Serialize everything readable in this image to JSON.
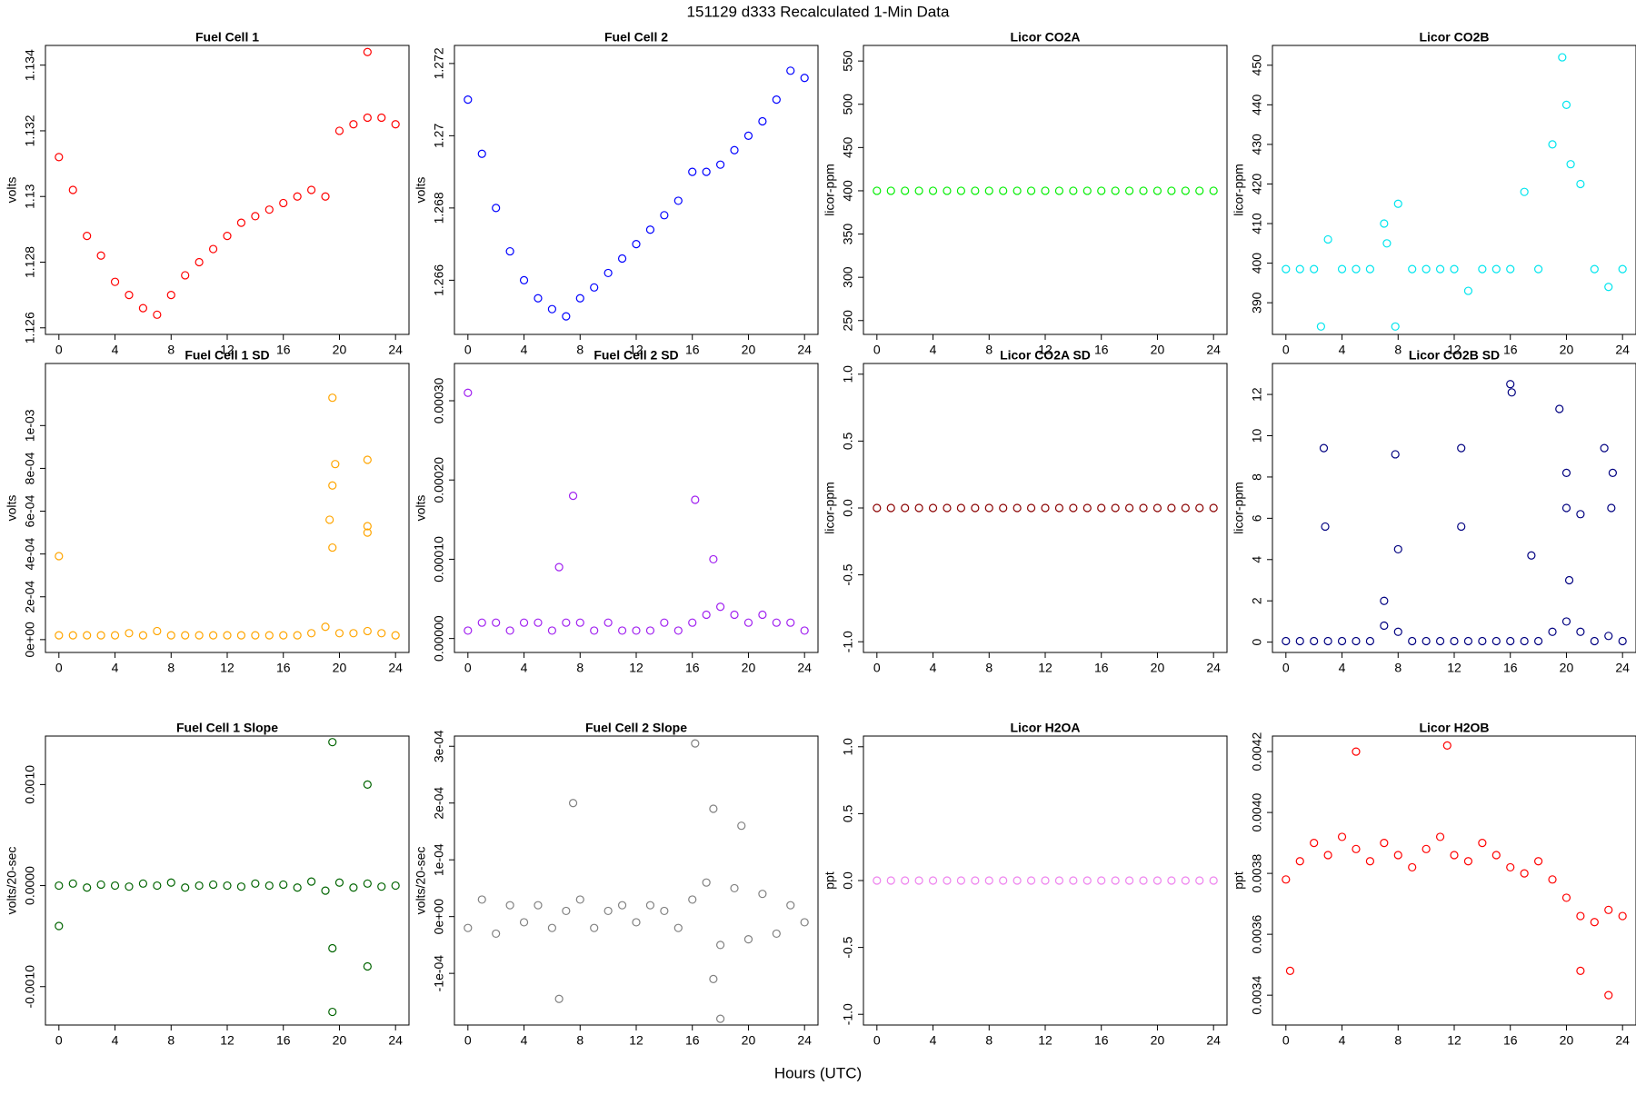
{
  "title": "151129   d333   Recalculated 1-Min Data",
  "xlabel": "Hours (UTC)",
  "chart_data": [
    {
      "type": "scatter",
      "title": "Fuel Cell 1",
      "ylabel": "volts",
      "color": "#ff0000",
      "x": [
        0,
        1,
        2,
        3,
        4,
        5,
        6,
        7,
        8,
        9,
        10,
        11,
        12,
        13,
        14,
        15,
        16,
        17,
        18,
        19,
        20,
        21,
        22,
        23,
        24,
        22
      ],
      "values": [
        1.1312,
        1.1302,
        1.1288,
        1.1282,
        1.1274,
        1.127,
        1.1266,
        1.1264,
        1.127,
        1.1276,
        1.128,
        1.1284,
        1.1288,
        1.1292,
        1.1294,
        1.1296,
        1.1298,
        1.13,
        1.1302,
        1.13,
        1.132,
        1.1322,
        1.1324,
        1.1324,
        1.1322,
        1.1344
      ],
      "xlim": [
        -0.96,
        24.96
      ],
      "xticks": [
        0,
        4,
        8,
        12,
        16,
        20,
        24
      ],
      "ylim": [
        1.1258,
        1.1346
      ],
      "yticks": [
        1.126,
        1.128,
        1.13,
        1.132,
        1.134
      ]
    },
    {
      "type": "scatter",
      "title": "Fuel Cell 2",
      "ylabel": "volts",
      "color": "#0000ff",
      "x": [
        0,
        1,
        2,
        3,
        4,
        5,
        6,
        7,
        8,
        9,
        10,
        11,
        12,
        13,
        14,
        15,
        16,
        17,
        18,
        19,
        20,
        21,
        22,
        23,
        24
      ],
      "values": [
        1.271,
        1.2695,
        1.268,
        1.2668,
        1.266,
        1.2655,
        1.2652,
        1.265,
        1.2655,
        1.2658,
        1.2662,
        1.2666,
        1.267,
        1.2674,
        1.2678,
        1.2682,
        1.269,
        1.269,
        1.2692,
        1.2696,
        1.27,
        1.2704,
        1.271,
        1.2718,
        1.2716
      ],
      "xlim": [
        -0.96,
        24.96
      ],
      "xticks": [
        0,
        4,
        8,
        12,
        16,
        20,
        24
      ],
      "ylim": [
        1.2645,
        1.2725
      ],
      "yticks": [
        1.266,
        1.268,
        1.27,
        1.272
      ]
    },
    {
      "type": "scatter",
      "title": "Licor CO2A",
      "ylabel": "licor-ppm",
      "color": "#00ee00",
      "x": [
        0,
        1,
        2,
        3,
        4,
        5,
        6,
        7,
        8,
        9,
        10,
        11,
        12,
        13,
        14,
        15,
        16,
        17,
        18,
        19,
        20,
        21,
        22,
        23,
        24
      ],
      "values": [
        400,
        400,
        400,
        400,
        400,
        400,
        400,
        400,
        400,
        400,
        400,
        400,
        400,
        400,
        400,
        400,
        400,
        400,
        400,
        400,
        400,
        400,
        400,
        400,
        400
      ],
      "xlim": [
        -0.96,
        24.96
      ],
      "xticks": [
        0,
        4,
        8,
        12,
        16,
        20,
        24
      ],
      "ylim": [
        234,
        568
      ],
      "yticks": [
        250,
        300,
        350,
        400,
        450,
        500,
        550
      ]
    },
    {
      "type": "scatter",
      "title": "Licor CO2B",
      "ylabel": "licor-ppm",
      "color": "#00e5ee",
      "x": [
        0,
        1,
        2,
        3,
        4,
        5,
        6,
        7,
        8,
        9,
        10,
        11,
        12,
        13,
        14,
        15,
        16,
        17,
        18,
        19,
        20,
        21,
        22,
        23,
        24,
        2.5,
        7.8,
        19.7,
        7.2,
        20.3
      ],
      "values": [
        398.5,
        398.5,
        398.5,
        406,
        398.5,
        398.5,
        398.5,
        410,
        415,
        398.5,
        398.5,
        398.5,
        398.5,
        393,
        398.5,
        398.5,
        398.5,
        418,
        398.5,
        430,
        440,
        420,
        398.5,
        394,
        398.5,
        384,
        384,
        452,
        405,
        425
      ],
      "xlim": [
        -0.96,
        24.96
      ],
      "xticks": [
        0,
        4,
        8,
        12,
        16,
        20,
        24
      ],
      "ylim": [
        382,
        455
      ],
      "yticks": [
        390,
        400,
        410,
        420,
        430,
        440,
        450
      ]
    },
    {
      "type": "scatter",
      "title": "Fuel Cell 1 SD",
      "ylabel": "volts",
      "color": "#ffa500",
      "x": [
        0,
        1,
        2,
        3,
        4,
        5,
        6,
        7,
        8,
        9,
        10,
        11,
        12,
        13,
        14,
        15,
        16,
        17,
        18,
        19,
        20,
        21,
        22,
        23,
        24,
        0,
        19.5,
        19.7,
        19.5,
        19.3,
        19.5,
        22,
        22,
        22
      ],
      "values": [
        2e-05,
        2e-05,
        2e-05,
        2e-05,
        2e-05,
        3e-05,
        2e-05,
        4e-05,
        2e-05,
        2e-05,
        2e-05,
        2e-05,
        2e-05,
        2e-05,
        2e-05,
        2e-05,
        2e-05,
        2e-05,
        3e-05,
        6e-05,
        3e-05,
        3e-05,
        4e-05,
        3e-05,
        2e-05,
        0.00039,
        0.00113,
        0.00082,
        0.00072,
        0.00056,
        0.00043,
        0.00084,
        0.00053,
        0.0005
      ],
      "xlim": [
        -0.96,
        24.96
      ],
      "xticks": [
        0,
        4,
        8,
        12,
        16,
        20,
        24
      ],
      "ylim": [
        -6e-05,
        0.00129
      ],
      "yticks": [
        {
          "value": 0,
          "label": "0e+00"
        },
        {
          "value": 0.0002,
          "label": "2e-04"
        },
        {
          "value": 0.0004,
          "label": "4e-04"
        },
        {
          "value": 0.0006,
          "label": "6e-04"
        },
        {
          "value": 0.0008,
          "label": "8e-04"
        },
        {
          "value": 0.001,
          "label": "1e-03"
        }
      ]
    },
    {
      "type": "scatter",
      "title": "Fuel Cell 2 SD",
      "ylabel": "volts",
      "color": "#a020f0",
      "x": [
        0,
        1,
        2,
        3,
        4,
        5,
        6,
        7,
        8,
        9,
        10,
        11,
        12,
        13,
        14,
        15,
        16,
        17,
        18,
        19,
        20,
        21,
        22,
        23,
        24,
        0,
        7.5,
        16.2,
        6.5,
        17.5
      ],
      "values": [
        1e-05,
        2e-05,
        2e-05,
        1e-05,
        2e-05,
        2e-05,
        1e-05,
        2e-05,
        2e-05,
        1e-05,
        2e-05,
        1e-05,
        1e-05,
        1e-05,
        2e-05,
        1e-05,
        2e-05,
        3e-05,
        4e-05,
        3e-05,
        2e-05,
        3e-05,
        2e-05,
        2e-05,
        1e-05,
        0.00031,
        0.00018,
        0.000175,
        9e-05,
        0.0001
      ],
      "xlim": [
        -0.96,
        24.96
      ],
      "xticks": [
        0,
        4,
        8,
        12,
        16,
        20,
        24
      ],
      "ylim": [
        -1.76e-05,
        0.000347
      ],
      "yticks": [
        {
          "value": 0,
          "label": "0.00000"
        },
        {
          "value": 0.0001,
          "label": "0.00010"
        },
        {
          "value": 0.0002,
          "label": "0.00020"
        },
        {
          "value": 0.0003,
          "label": "0.00030"
        }
      ]
    },
    {
      "type": "scatter",
      "title": "Licor CO2A SD",
      "ylabel": "licor-ppm",
      "color": "#8b0000",
      "x": [
        0,
        1,
        2,
        3,
        4,
        5,
        6,
        7,
        8,
        9,
        10,
        11,
        12,
        13,
        14,
        15,
        16,
        17,
        18,
        19,
        20,
        21,
        22,
        23,
        24
      ],
      "values": [
        0,
        0,
        0,
        0,
        0,
        0,
        0,
        0,
        0,
        0,
        0,
        0,
        0,
        0,
        0,
        0,
        0,
        0,
        0,
        0,
        0,
        0,
        0,
        0,
        0
      ],
      "xlim": [
        -0.96,
        24.96
      ],
      "xticks": [
        0,
        4,
        8,
        12,
        16,
        20,
        24
      ],
      "ylim": [
        -1.08,
        1.08
      ],
      "yticks": [
        {
          "value": -1,
          "label": "-1.0"
        },
        -0.5,
        {
          "value": 0,
          "label": "0.0"
        },
        0.5,
        {
          "value": 1,
          "label": "1.0"
        }
      ]
    },
    {
      "type": "scatter",
      "title": "Licor CO2B SD",
      "ylabel": "licor-ppm",
      "color": "#000080",
      "x": [
        0,
        1,
        2,
        3,
        4,
        5,
        6,
        7,
        8,
        9,
        10,
        11,
        12,
        13,
        14,
        15,
        16,
        17,
        18,
        19,
        20,
        21,
        22,
        23,
        24,
        2.7,
        2.8,
        7.8,
        8,
        7,
        12.5,
        12.5,
        16,
        16.1,
        19.5,
        20,
        20,
        21,
        22.7,
        23.3,
        23.2,
        17.5,
        20.2
      ],
      "values": [
        0.05,
        0.05,
        0.05,
        0.05,
        0.05,
        0.05,
        0.05,
        0.8,
        0.5,
        0.05,
        0.05,
        0.05,
        0.05,
        0.05,
        0.05,
        0.05,
        0.05,
        0.05,
        0.05,
        0.5,
        1,
        0.5,
        0.05,
        0.3,
        0.05,
        9.4,
        5.6,
        9.1,
        4.5,
        2,
        9.4,
        5.6,
        12.5,
        12.1,
        11.3,
        8.2,
        6.5,
        6.2,
        9.4,
        8.2,
        6.5,
        4.2,
        3
      ],
      "xlim": [
        -0.96,
        24.96
      ],
      "xticks": [
        0,
        4,
        8,
        12,
        16,
        20,
        24
      ],
      "ylim": [
        -0.5,
        13.5
      ],
      "yticks": [
        0,
        2,
        4,
        6,
        8,
        10,
        12
      ]
    },
    {
      "type": "scatter",
      "title": "Fuel Cell 1 Slope",
      "ylabel": "volts/20-sec",
      "color": "#006400",
      "x": [
        0,
        1,
        2,
        3,
        4,
        5,
        6,
        7,
        8,
        9,
        10,
        11,
        12,
        13,
        14,
        15,
        16,
        17,
        18,
        19,
        20,
        21,
        22,
        23,
        24,
        19.5,
        22,
        0,
        19.5,
        19.5,
        22
      ],
      "values": [
        0,
        2e-05,
        -2e-05,
        1e-05,
        0,
        -1e-05,
        2e-05,
        0,
        3e-05,
        -2e-05,
        0,
        1e-05,
        0,
        -1e-05,
        2e-05,
        0,
        1e-05,
        -2e-05,
        4e-05,
        -5e-05,
        3e-05,
        -2e-05,
        2e-05,
        -1e-05,
        0,
        0.00142,
        0.001,
        -0.0004,
        -0.00062,
        -0.00125,
        -0.0008
      ],
      "xlim": [
        -0.96,
        24.96
      ],
      "xticks": [
        0,
        4,
        8,
        12,
        16,
        20,
        24
      ],
      "ylim": [
        -0.00138,
        0.00148
      ],
      "yticks": [
        {
          "value": -0.001,
          "label": "-0.0010"
        },
        {
          "value": 0,
          "label": "0.0000"
        },
        {
          "value": 0.001,
          "label": "0.0010"
        }
      ]
    },
    {
      "type": "scatter",
      "title": "Fuel Cell 2 Slope",
      "ylabel": "volts/20-sec",
      "color": "#808080",
      "x": [
        0,
        1,
        2,
        3,
        4,
        5,
        6,
        7,
        8,
        9,
        10,
        11,
        12,
        13,
        14,
        15,
        16,
        17,
        18,
        19,
        20,
        21,
        22,
        23,
        24,
        16.2,
        7.5,
        17.5,
        19.5,
        6.5,
        18,
        17.5
      ],
      "values": [
        -2e-05,
        3e-05,
        -3e-05,
        2e-05,
        -1e-05,
        2e-05,
        -2e-05,
        1e-05,
        3e-05,
        -2e-05,
        1e-05,
        2e-05,
        -1e-05,
        2e-05,
        1e-05,
        -2e-05,
        3e-05,
        6e-05,
        -5e-05,
        5e-05,
        -4e-05,
        4e-05,
        -3e-05,
        2e-05,
        -1e-05,
        0.000305,
        0.0002,
        0.00019,
        0.00016,
        -0.000145,
        -0.00018,
        -0.00011
      ],
      "xlim": [
        -0.96,
        24.96
      ],
      "xticks": [
        0,
        4,
        8,
        12,
        16,
        20,
        24
      ],
      "ylim": [
        -0.000191,
        0.000318
      ],
      "yticks": [
        {
          "value": -0.0001,
          "label": "-1e-04"
        },
        {
          "value": 0,
          "label": "0e+00"
        },
        {
          "value": 0.0001,
          "label": "1e-04"
        },
        {
          "value": 0.0002,
          "label": "2e-04"
        },
        {
          "value": 0.0003,
          "label": "3e-04"
        }
      ]
    },
    {
      "type": "scatter",
      "title": "Licor H2OA",
      "ylabel": "ppt",
      "color": "#ee82ee",
      "x": [
        0,
        1,
        2,
        3,
        4,
        5,
        6,
        7,
        8,
        9,
        10,
        11,
        12,
        13,
        14,
        15,
        16,
        17,
        18,
        19,
        20,
        21,
        22,
        23,
        24
      ],
      "values": [
        0,
        0,
        0,
        0,
        0,
        0,
        0,
        0,
        0,
        0,
        0,
        0,
        0,
        0,
        0,
        0,
        0,
        0,
        0,
        0,
        0,
        0,
        0,
        0,
        0
      ],
      "xlim": [
        -0.96,
        24.96
      ],
      "xticks": [
        0,
        4,
        8,
        12,
        16,
        20,
        24
      ],
      "ylim": [
        -1.08,
        1.08
      ],
      "yticks": [
        {
          "value": -1,
          "label": "-1.0"
        },
        -0.5,
        {
          "value": 0,
          "label": "0.0"
        },
        0.5,
        {
          "value": 1,
          "label": "1.0"
        }
      ]
    },
    {
      "type": "scatter",
      "title": "Licor H2OB",
      "ylabel": "ppt",
      "color": "#ff0000",
      "x": [
        0,
        1,
        2,
        3,
        4,
        5,
        6,
        7,
        8,
        9,
        10,
        11,
        12,
        13,
        14,
        15,
        16,
        17,
        18,
        19,
        20,
        21,
        22,
        23,
        24,
        11.5,
        0.3,
        23,
        21,
        5
      ],
      "values": [
        0.00378,
        0.00384,
        0.0039,
        0.00386,
        0.00392,
        0.00388,
        0.00384,
        0.0039,
        0.00386,
        0.00382,
        0.00388,
        0.00392,
        0.00386,
        0.00384,
        0.0039,
        0.00386,
        0.00382,
        0.0038,
        0.00384,
        0.00378,
        0.00372,
        0.00366,
        0.00364,
        0.00368,
        0.00366,
        0.00422,
        0.00348,
        0.0034,
        0.00348,
        0.0042
      ],
      "xlim": [
        -0.96,
        24.96
      ],
      "xticks": [
        0,
        4,
        8,
        12,
        16,
        20,
        24
      ],
      "ylim": [
        0.003302,
        0.004251
      ],
      "yticks": [
        0.0034,
        0.0036,
        0.0038,
        {
          "value": 0.004,
          "label": "0.0040"
        },
        0.0042
      ]
    }
  ]
}
